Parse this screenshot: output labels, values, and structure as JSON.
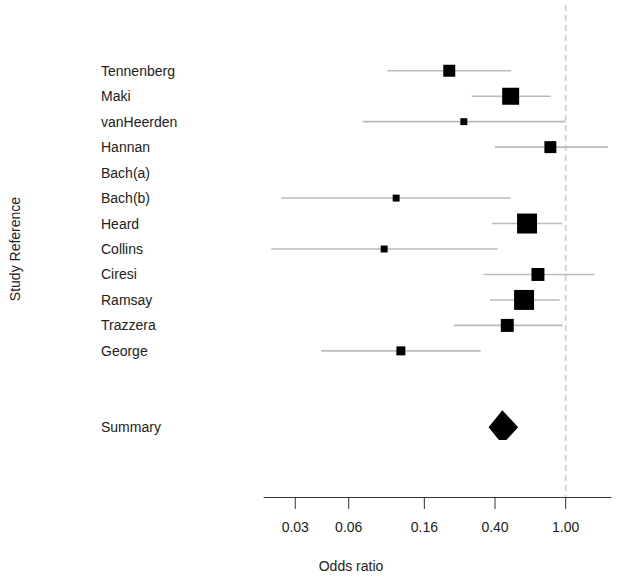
{
  "chart_data": {
    "type": "forest",
    "x_label": "Odds ratio",
    "y_label": "Study Reference",
    "log": "x",
    "categories": [
      "Tennenberg",
      "Maki",
      "vanHeerden",
      "Hannan",
      "Bach(a)",
      "Bach(b)",
      "Heard",
      "Collins",
      "Ciresi",
      "Ramsay",
      "Trazzera",
      "George",
      null,
      null,
      "Summary"
    ],
    "series": [
      {
        "marker": "square",
        "color": "#000000",
        "values": [
          0.221,
          0.49,
          0.267,
          0.82,
          null,
          0.111,
          0.606,
          0.095,
          0.698,
          0.583,
          0.469,
          0.118,
          null,
          null,
          null
        ],
        "lower": [
          0.099,
          0.296,
          0.072,
          0.4,
          null,
          0.025,
          0.383,
          0.022,
          0.345,
          0.375,
          0.235,
          0.042,
          null,
          null,
          null
        ],
        "upper": [
          0.494,
          0.824,
          1.0,
          1.73,
          null,
          0.49,
          0.96,
          0.413,
          1.45,
          0.925,
          0.96,
          0.332,
          null,
          null,
          null
        ],
        "weights": [
          7.4,
          14.9,
          2.5,
          7.4,
          null,
          2.5,
          20.6,
          2.5,
          8.7,
          20.6,
          8.7,
          4.2,
          null,
          null,
          null
        ]
      },
      {
        "marker": "diamond",
        "color": "#000000",
        "values": [
          null,
          null,
          null,
          null,
          null,
          null,
          null,
          null,
          null,
          null,
          null,
          null,
          null,
          null,
          0.44
        ],
        "lower": [
          null,
          null,
          null,
          null,
          null,
          null,
          null,
          null,
          null,
          null,
          null,
          null,
          null,
          null,
          0.368
        ],
        "upper": [
          null,
          null,
          null,
          null,
          null,
          null,
          null,
          null,
          null,
          null,
          null,
          null,
          null,
          null,
          0.54
        ]
      }
    ],
    "reference_line": 1,
    "xlim": [
      0.02,
      1.8
    ],
    "xticks": [
      0.03,
      0.06,
      0.16,
      {
        "value": 0.4,
        "label": "0.40"
      },
      {
        "value": 1,
        "label": "1.00"
      }
    ],
    "grid": false
  }
}
